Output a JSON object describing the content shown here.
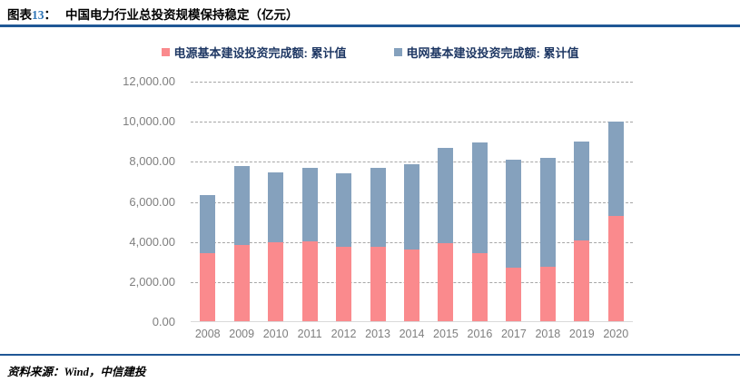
{
  "header": {
    "label_prefix": "图表",
    "figure_number": "13",
    "colon": "：",
    "title": "中国电力行业总投资规模保持稳定（亿元）"
  },
  "legend": [
    {
      "label": "电源基本建设投资完成额: 累计值",
      "color": "#fa8a8d"
    },
    {
      "label": "电网基本建设投资完成额: 累计值",
      "color": "#85a1bd"
    }
  ],
  "chart_data": {
    "type": "bar",
    "stacked": true,
    "title": "中国电力行业总投资规模保持稳定（亿元）",
    "categories": [
      "2008",
      "2009",
      "2010",
      "2011",
      "2012",
      "2013",
      "2014",
      "2015",
      "2016",
      "2017",
      "2018",
      "2019",
      "2020"
    ],
    "series": [
      {
        "name": "电源基本建设投资完成额: 累计值",
        "color": "#fa8a8d",
        "values": [
          3400,
          3800,
          3950,
          4000,
          3700,
          3700,
          3600,
          3900,
          3400,
          2650,
          2700,
          4050,
          5250
        ]
      },
      {
        "name": "电网基本建设投资完成额: 累计值",
        "color": "#85a1bd",
        "values": [
          2900,
          3950,
          3500,
          3650,
          3700,
          3950,
          4250,
          4750,
          5500,
          5400,
          5450,
          4900,
          4700
        ]
      }
    ],
    "xlabel": "",
    "ylabel": "",
    "ylim": [
      0,
      12000
    ],
    "ytick_step": 2000,
    "ytick_labels": [
      "0.00",
      "2,000.00",
      "4,000.00",
      "6,000.00",
      "8,000.00",
      "10,000.00",
      "12,000.00"
    ],
    "grid": "horizontal-dashed",
    "legend_position": "top-center"
  },
  "colors": {
    "rule": "#1f5795",
    "figure_number": "#2e74b5",
    "legend_text": "#1f3864",
    "axis_text": "#7f7f7f",
    "gridline": "#a6a6a6",
    "baseline": "#d9d9d9"
  },
  "footer": {
    "source": "资料来源：Wind，中信建投"
  }
}
